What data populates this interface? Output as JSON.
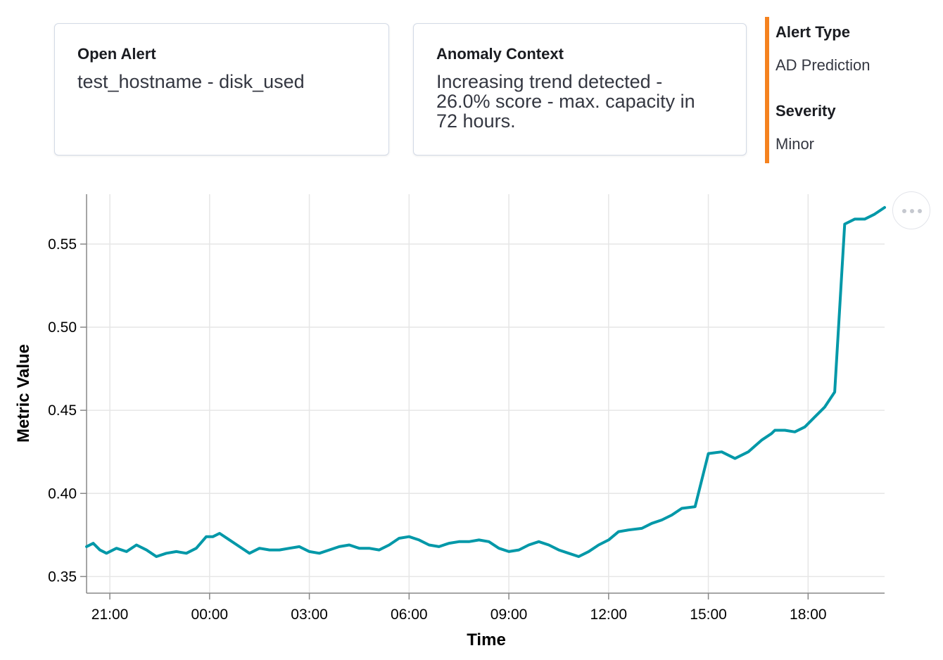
{
  "cards": {
    "open_alert": {
      "title": "Open Alert",
      "value": "test_hostname - disk_used"
    },
    "anomaly_context": {
      "title": "Anomaly Context",
      "lines": [
        "Increasing trend detected -",
        "26.0% score - max. capacity in",
        "72 hours."
      ]
    }
  },
  "meta": {
    "alert_type_label": "Alert Type",
    "alert_type_value": "AD Prediction",
    "severity_label": "Severity",
    "severity_value": "Minor",
    "accent_color": "#f5821f"
  },
  "menu_button": {
    "icon": "more-horizontal-icon"
  },
  "chart_data": {
    "type": "line",
    "xlabel": "Time",
    "ylabel": "Metric Value",
    "x_tick_labels": [
      "21:00",
      "00:00",
      "03:00",
      "06:00",
      "09:00",
      "12:00",
      "15:00",
      "18:00"
    ],
    "y_tick_labels": [
      "0.35",
      "0.40",
      "0.45",
      "0.50",
      "0.55"
    ],
    "xlim_hours": [
      20.3,
      44.3
    ],
    "ylim": [
      0.34,
      0.58
    ],
    "grid": true,
    "line_color": "#0098a8",
    "series": [
      {
        "x_hours": [
          20.3,
          20.5,
          20.7,
          20.9,
          21.2,
          21.5,
          21.8,
          22.1,
          22.4,
          22.7,
          23.0,
          23.3,
          23.6,
          23.9,
          24.1,
          24.3,
          24.6,
          24.9,
          25.2,
          25.5,
          25.8,
          26.1,
          26.4,
          26.7,
          27.0,
          27.3,
          27.6,
          27.9,
          28.2,
          28.5,
          28.8,
          29.1,
          29.4,
          29.7,
          30.0,
          30.3,
          30.6,
          30.9,
          31.2,
          31.5,
          31.8,
          32.1,
          32.4,
          32.7,
          33.0,
          33.3,
          33.6,
          33.9,
          34.2,
          34.5,
          34.8,
          35.1,
          35.4,
          35.7,
          36.0,
          36.3,
          36.6,
          37.0,
          37.3,
          37.6,
          37.9,
          38.2,
          38.6,
          39.0,
          39.4,
          39.8,
          40.2,
          40.6,
          40.9,
          41.0,
          41.3,
          41.6,
          41.9,
          42.2,
          42.5,
          42.8,
          43.1,
          43.4,
          43.7,
          44.0,
          44.3
        ],
        "values": [
          0.368,
          0.37,
          0.366,
          0.364,
          0.367,
          0.365,
          0.369,
          0.366,
          0.362,
          0.364,
          0.365,
          0.364,
          0.367,
          0.374,
          0.374,
          0.376,
          0.372,
          0.368,
          0.364,
          0.367,
          0.366,
          0.366,
          0.367,
          0.368,
          0.365,
          0.364,
          0.366,
          0.368,
          0.369,
          0.367,
          0.367,
          0.366,
          0.369,
          0.373,
          0.374,
          0.372,
          0.369,
          0.368,
          0.37,
          0.371,
          0.371,
          0.372,
          0.371,
          0.367,
          0.365,
          0.366,
          0.369,
          0.371,
          0.369,
          0.366,
          0.364,
          0.362,
          0.365,
          0.369,
          0.372,
          0.377,
          0.378,
          0.379,
          0.382,
          0.384,
          0.387,
          0.391,
          0.392,
          0.424,
          0.425,
          0.421,
          0.425,
          0.432,
          0.436,
          0.438,
          0.438,
          0.437,
          0.44,
          0.446,
          0.452,
          0.461,
          0.562,
          0.565,
          0.565,
          0.568,
          0.572
        ]
      }
    ]
  }
}
